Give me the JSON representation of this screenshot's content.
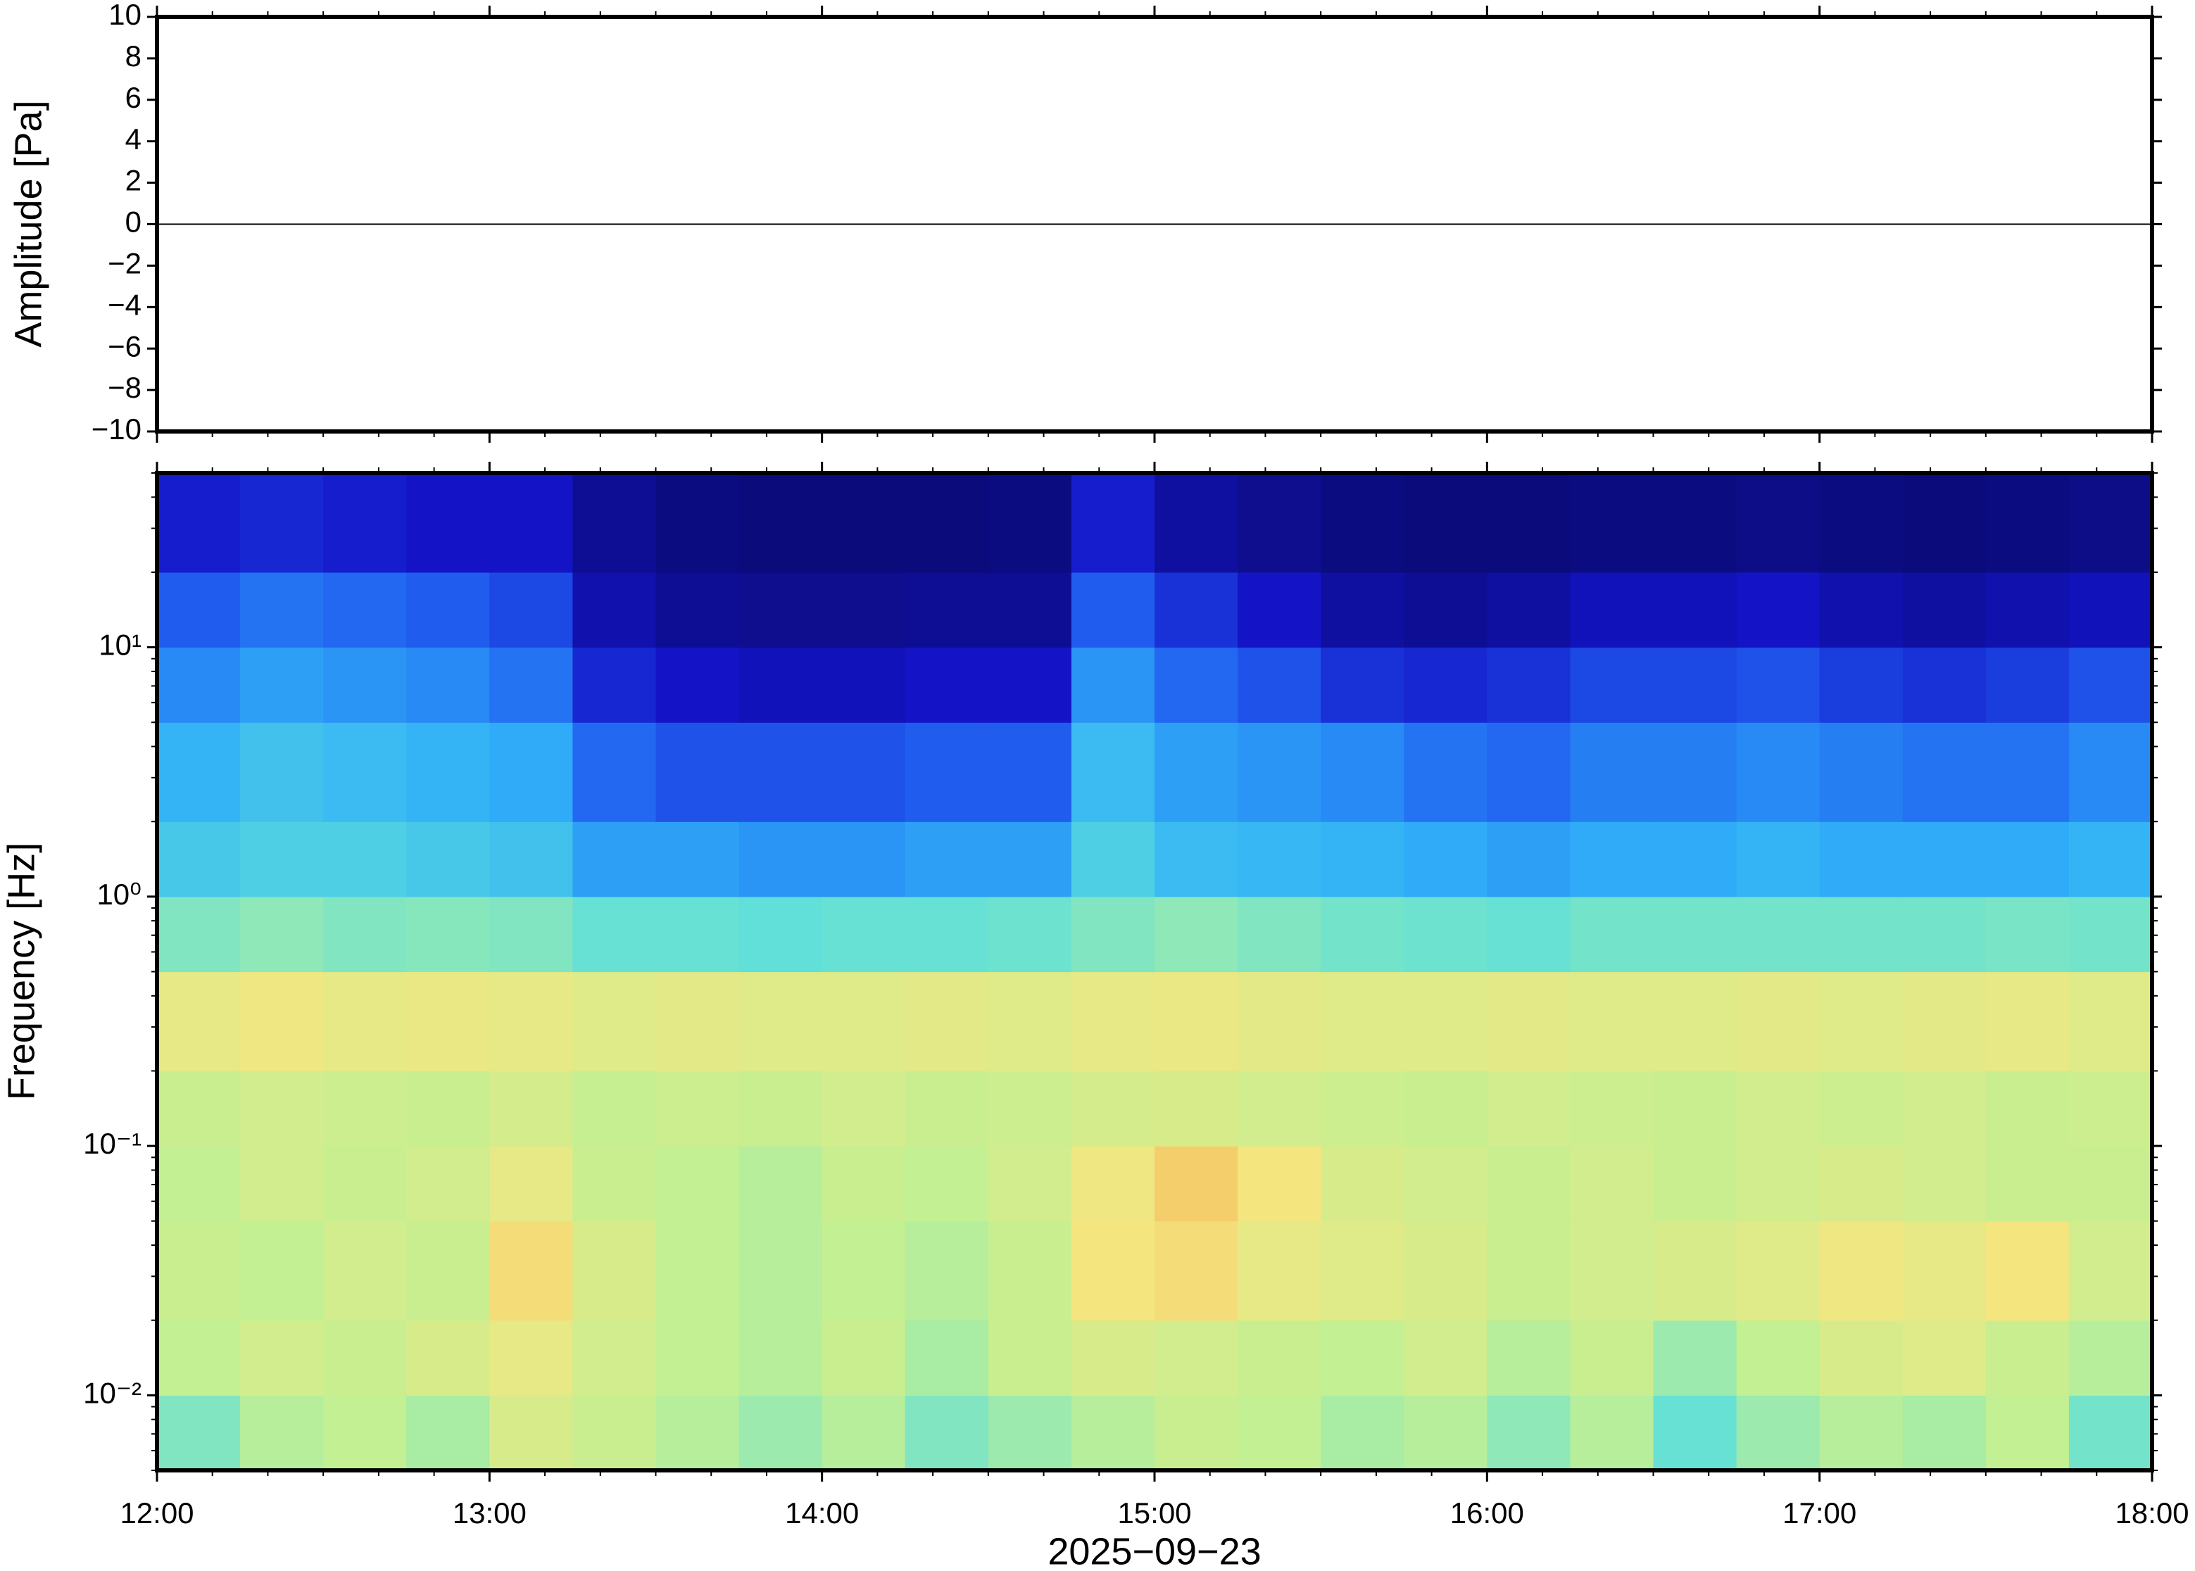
{
  "chart_data": [
    {
      "type": "line",
      "ylabel": "Amplitude [Pa]",
      "color": "#000000",
      "x": [
        "12:00",
        "12:15",
        "12:30",
        "12:45",
        "13:00",
        "13:15",
        "13:30",
        "13:45",
        "14:00",
        "14:15",
        "14:30",
        "14:45",
        "15:00",
        "15:15",
        "15:30",
        "15:45",
        "16:00",
        "16:15",
        "16:30",
        "16:45",
        "17:00",
        "17:15",
        "17:30",
        "17:45",
        "18:00"
      ],
      "values": [
        0,
        0,
        0,
        0,
        0,
        0,
        0,
        0,
        0,
        0,
        0,
        0,
        0,
        0,
        0,
        0,
        0,
        0,
        0,
        0,
        0,
        0,
        0,
        0,
        0
      ],
      "xlim": [
        "12:00",
        "18:00"
      ],
      "xticks": [
        "12:00",
        "13:00",
        "14:00",
        "15:00",
        "16:00",
        "17:00",
        "18:00"
      ],
      "ylim": [
        -10,
        10
      ],
      "yticks": [
        {
          "value": -10,
          "label": "−10"
        },
        {
          "value": -8,
          "label": "−8"
        },
        {
          "value": -6,
          "label": "−6"
        },
        {
          "value": -4,
          "label": "−4"
        },
        {
          "value": -2,
          "label": "−2"
        },
        0,
        2,
        4,
        6,
        8,
        10
      ]
    },
    {
      "type": "heatmap",
      "ylabel": "Frequency [Hz]",
      "xlabel": "2025−09−23",
      "ylog": true,
      "x": [
        "12:00",
        "12:15",
        "12:30",
        "12:45",
        "13:00",
        "13:15",
        "13:30",
        "13:45",
        "14:00",
        "14:15",
        "14:30",
        "14:45",
        "15:00",
        "15:15",
        "15:30",
        "15:45",
        "16:00",
        "16:15",
        "16:30",
        "16:45",
        "17:00",
        "17:15",
        "17:30",
        "17:45"
      ],
      "bins": [
        0.005,
        0.01,
        0.02,
        0.05,
        0.1,
        0.2,
        0.5,
        1,
        2,
        5,
        10,
        20,
        50
      ],
      "values": [
        [
          0.62,
          0.7,
          0.72,
          0.68,
          0.78,
          0.74,
          0.7,
          0.66,
          0.7,
          0.62,
          0.66,
          0.7,
          0.74,
          0.72,
          0.68,
          0.7,
          0.64,
          0.7,
          0.58,
          0.66,
          0.7,
          0.68,
          0.72,
          0.6
        ],
        [
          0.72,
          0.76,
          0.74,
          0.78,
          0.82,
          0.76,
          0.72,
          0.7,
          0.74,
          0.68,
          0.74,
          0.78,
          0.76,
          0.74,
          0.72,
          0.76,
          0.7,
          0.74,
          0.66,
          0.72,
          0.78,
          0.8,
          0.74,
          0.7
        ],
        [
          0.74,
          0.72,
          0.76,
          0.74,
          0.88,
          0.78,
          0.72,
          0.7,
          0.72,
          0.7,
          0.74,
          0.86,
          0.88,
          0.82,
          0.8,
          0.78,
          0.74,
          0.76,
          0.78,
          0.8,
          0.84,
          0.82,
          0.86,
          0.76
        ],
        [
          0.72,
          0.76,
          0.74,
          0.76,
          0.82,
          0.74,
          0.72,
          0.7,
          0.74,
          0.72,
          0.76,
          0.84,
          0.92,
          0.86,
          0.78,
          0.76,
          0.74,
          0.76,
          0.74,
          0.76,
          0.78,
          0.76,
          0.74,
          0.74
        ],
        [
          0.74,
          0.76,
          0.75,
          0.74,
          0.77,
          0.73,
          0.75,
          0.74,
          0.76,
          0.74,
          0.75,
          0.77,
          0.78,
          0.76,
          0.75,
          0.74,
          0.76,
          0.75,
          0.74,
          0.76,
          0.75,
          0.76,
          0.74,
          0.75
        ],
        [
          0.82,
          0.84,
          0.82,
          0.83,
          0.82,
          0.8,
          0.81,
          0.8,
          0.8,
          0.81,
          0.8,
          0.82,
          0.83,
          0.81,
          0.8,
          0.8,
          0.81,
          0.8,
          0.8,
          0.81,
          0.8,
          0.81,
          0.82,
          0.8
        ],
        [
          0.62,
          0.64,
          0.62,
          0.63,
          0.62,
          0.58,
          0.58,
          0.57,
          0.58,
          0.58,
          0.59,
          0.62,
          0.64,
          0.62,
          0.6,
          0.59,
          0.58,
          0.6,
          0.6,
          0.6,
          0.6,
          0.6,
          0.61,
          0.6
        ],
        [
          0.5,
          0.52,
          0.52,
          0.5,
          0.48,
          0.4,
          0.4,
          0.38,
          0.38,
          0.4,
          0.4,
          0.52,
          0.46,
          0.45,
          0.44,
          0.42,
          0.4,
          0.42,
          0.42,
          0.44,
          0.42,
          0.42,
          0.42,
          0.44
        ],
        [
          0.44,
          0.48,
          0.46,
          0.44,
          0.42,
          0.3,
          0.26,
          0.26,
          0.26,
          0.28,
          0.28,
          0.46,
          0.4,
          0.38,
          0.36,
          0.32,
          0.3,
          0.34,
          0.34,
          0.36,
          0.34,
          0.32,
          0.32,
          0.36
        ],
        [
          0.36,
          0.4,
          0.38,
          0.36,
          0.32,
          0.18,
          0.14,
          0.12,
          0.12,
          0.14,
          0.14,
          0.38,
          0.3,
          0.26,
          0.2,
          0.18,
          0.2,
          0.24,
          0.24,
          0.26,
          0.22,
          0.2,
          0.22,
          0.26
        ],
        [
          0.28,
          0.32,
          0.3,
          0.28,
          0.24,
          0.1,
          0.06,
          0.05,
          0.05,
          0.06,
          0.06,
          0.28,
          0.2,
          0.14,
          0.08,
          0.06,
          0.08,
          0.12,
          0.12,
          0.14,
          0.1,
          0.08,
          0.1,
          0.12
        ],
        [
          0.16,
          0.18,
          0.16,
          0.14,
          0.14,
          0.06,
          0.03,
          0.02,
          0.02,
          0.02,
          0.03,
          0.16,
          0.08,
          0.05,
          0.03,
          0.02,
          0.02,
          0.03,
          0.03,
          0.04,
          0.03,
          0.02,
          0.03,
          0.04
        ]
      ],
      "colormap": [
        "#0a0a6e",
        "#1414c8",
        "#2060f0",
        "#30b0f8",
        "#60e0d8",
        "#c0f094",
        "#f4e680",
        "#f4b050"
      ],
      "xlim": [
        "12:00",
        "18:00"
      ],
      "xticks": [
        "12:00",
        "13:00",
        "14:00",
        "15:00",
        "16:00",
        "17:00",
        "18:00"
      ],
      "ylim": [
        0.005,
        50
      ],
      "yticks": [
        {
          "value": 0.01,
          "label": "10⁻²"
        },
        {
          "value": 0.1,
          "label": "10⁻¹"
        },
        {
          "value": 1,
          "label": "10⁰"
        },
        {
          "value": 10,
          "label": "10¹"
        }
      ]
    }
  ]
}
